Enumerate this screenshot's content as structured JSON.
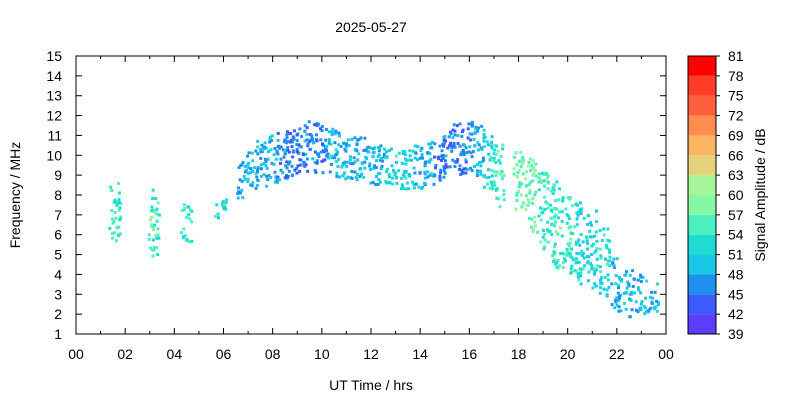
{
  "chart_data": {
    "type": "scatter",
    "title": "2025-05-27",
    "xlabel": "UT Time / hrs",
    "ylabel": "Frequency / MHz",
    "colorbar_label": "Signal Amplitude / dB",
    "xlim": [
      0,
      24
    ],
    "ylim": [
      1,
      15
    ],
    "x_tick_labels": [
      "00",
      "02",
      "04",
      "06",
      "08",
      "10",
      "12",
      "14",
      "16",
      "18",
      "20",
      "22",
      "00"
    ],
    "y_tick_labels": [
      "1",
      "2",
      "3",
      "4",
      "5",
      "6",
      "7",
      "8",
      "9",
      "10",
      "11",
      "12",
      "13",
      "14",
      "15"
    ],
    "colorbar": {
      "levels": [
        "39",
        "42",
        "45",
        "48",
        "51",
        "54",
        "57",
        "60",
        "63",
        "66",
        "69",
        "72",
        "75",
        "78",
        "81"
      ],
      "colors": [
        "#7f00ff",
        "#5a3dfd",
        "#3d5afa",
        "#1e90f0",
        "#19c8e6",
        "#1edcd2",
        "#4bf0c0",
        "#86f7a4",
        "#a6f59a",
        "#e6d27a",
        "#fcb564",
        "#ff8c50",
        "#ff5f3c",
        "#ff3c28",
        "#ff0000"
      ]
    },
    "series": [
      {
        "x": [
          1.6,
          3.2,
          4.5,
          5.9,
          6.8,
          7.2,
          7.6,
          8.0,
          8.4,
          8.8,
          9.2,
          9.6,
          10.0,
          10.4,
          10.8,
          11.2,
          11.6,
          12.0,
          12.4,
          12.8,
          13.2,
          13.6,
          14.0,
          14.4,
          14.8,
          15.2,
          15.6,
          16.0,
          16.4,
          16.8,
          17.2
        ],
        "y": [
          7.0,
          6.6,
          6.6,
          7.4,
          8.8,
          9.4,
          9.6,
          9.8,
          10.0,
          10.2,
          10.3,
          10.4,
          10.4,
          10.2,
          10.0,
          9.9,
          9.8,
          9.6,
          9.5,
          9.4,
          9.3,
          9.3,
          9.4,
          9.6,
          9.9,
          10.1,
          10.3,
          10.4,
          10.2,
          9.6,
          9.0
        ],
        "spread": [
          1.6,
          1.7,
          1.0,
          0.6,
          1.0,
          1.1,
          1.2,
          1.2,
          1.3,
          1.3,
          1.3,
          1.3,
          1.3,
          1.2,
          1.2,
          1.1,
          1.1,
          1.0,
          1.0,
          1.0,
          1.0,
          1.0,
          1.1,
          1.1,
          1.2,
          1.2,
          1.3,
          1.3,
          1.3,
          1.4,
          1.6
        ],
        "amp": [
          57,
          57,
          57,
          54,
          51,
          51,
          51,
          51,
          48,
          48,
          48,
          48,
          48,
          51,
          51,
          51,
          51,
          51,
          51,
          54,
          54,
          54,
          51,
          51,
          48,
          48,
          48,
          48,
          51,
          54,
          57
        ]
      },
      {
        "x": [
          18.0,
          18.5,
          19.0,
          19.5,
          20.0,
          20.5,
          21.0,
          21.5,
          22.0,
          22.5,
          23.0,
          23.5
        ],
        "y": [
          8.6,
          8.0,
          7.2,
          6.5,
          6.0,
          5.6,
          5.2,
          4.6,
          3.4,
          3.0,
          3.0,
          2.8
        ],
        "spread": [
          1.6,
          1.9,
          2.0,
          2.2,
          2.1,
          2.1,
          2.0,
          1.7,
          1.4,
          1.2,
          1.0,
          0.8
        ],
        "amp": [
          60,
          60,
          57,
          57,
          57,
          54,
          54,
          54,
          51,
          51,
          51,
          51
        ]
      }
    ],
    "grid": false,
    "legend": "colorbar-right"
  }
}
